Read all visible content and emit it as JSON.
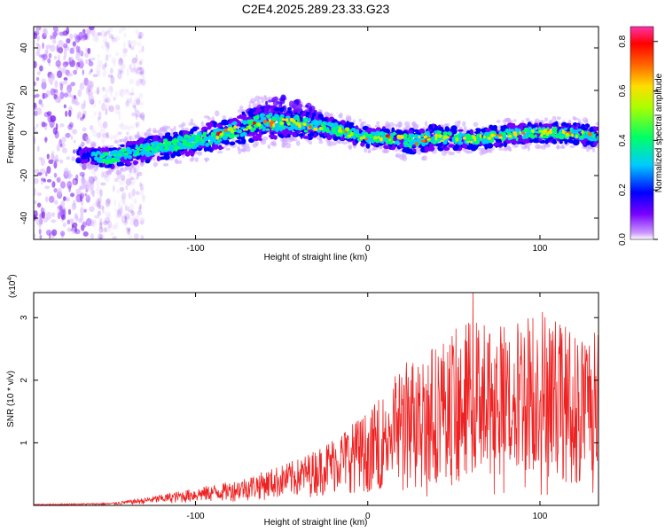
{
  "title": "C2E4.2025.289.23.33.G23",
  "chart_data": [
    {
      "type": "heatmap",
      "name": "spectrogram",
      "xlabel": "Height of straight line (km)",
      "ylabel": "Frequency (Hz)",
      "xlim": [
        -194,
        134
      ],
      "ylim": [
        -50,
        50
      ],
      "xticks": [
        -100,
        0,
        100
      ],
      "yticks": [
        -40,
        -20,
        0,
        20,
        40
      ],
      "colorbar": {
        "label": "Normalized spectral amplitude",
        "range": [
          0,
          0.86
        ],
        "ticks": [
          0.0,
          0.2,
          0.4,
          0.6,
          0.8
        ],
        "colors": [
          "#ffffff",
          "#7700ff",
          "#0000ff",
          "#00ccff",
          "#00ff66",
          "#aaff00",
          "#ffdd00",
          "#ff6600",
          "#ff0000",
          "#ff33aa"
        ]
      },
      "ridge": {
        "description": "dominant frequency ridge (Hz) vs height (km)",
        "x": [
          -165,
          -150,
          -130,
          -110,
          -90,
          -75,
          -60,
          -45,
          -30,
          -20,
          -10,
          0,
          10,
          25,
          40,
          60,
          80,
          100,
          120,
          134
        ],
        "y": [
          -10,
          -12,
          -8,
          -5,
          -2,
          2,
          5,
          5,
          3,
          2,
          0,
          -2,
          -2,
          -4,
          -2,
          -3,
          -1,
          0,
          0,
          -2
        ],
        "halfwidth": [
          3,
          4,
          5,
          5,
          6,
          6,
          7,
          6,
          5,
          4,
          4,
          4,
          4,
          5,
          5,
          4,
          4,
          4,
          4,
          4
        ]
      },
      "noise_region_x": [
        -194,
        -140
      ],
      "bump": {
        "x": [
          -70,
          -28
        ],
        "ymax": 18
      }
    },
    {
      "type": "line",
      "name": "snr",
      "color": "#ee2222",
      "xlabel": "Height of straight line (km)",
      "ylabel": "SNR (10 * v/v)",
      "y_multiplier_label": "(x10",
      "y_multiplier_exp": "4",
      "xlim": [
        -194,
        134
      ],
      "ylim": [
        0,
        3.4
      ],
      "xticks": [
        -100,
        0,
        100
      ],
      "yticks": [
        1,
        2,
        3
      ],
      "envelope": {
        "x": [
          -194,
          -150,
          -130,
          -100,
          -80,
          -60,
          -40,
          -30,
          -20,
          -10,
          0,
          10,
          20,
          40,
          60,
          80,
          100,
          120,
          134
        ],
        "y": [
          0.02,
          0.04,
          0.12,
          0.28,
          0.38,
          0.55,
          0.75,
          0.9,
          1.1,
          1.3,
          1.5,
          1.8,
          2.3,
          2.6,
          3.0,
          2.9,
          3.2,
          2.8,
          2.8
        ]
      },
      "peak": {
        "x": 61,
        "y": 3.45
      }
    }
  ]
}
